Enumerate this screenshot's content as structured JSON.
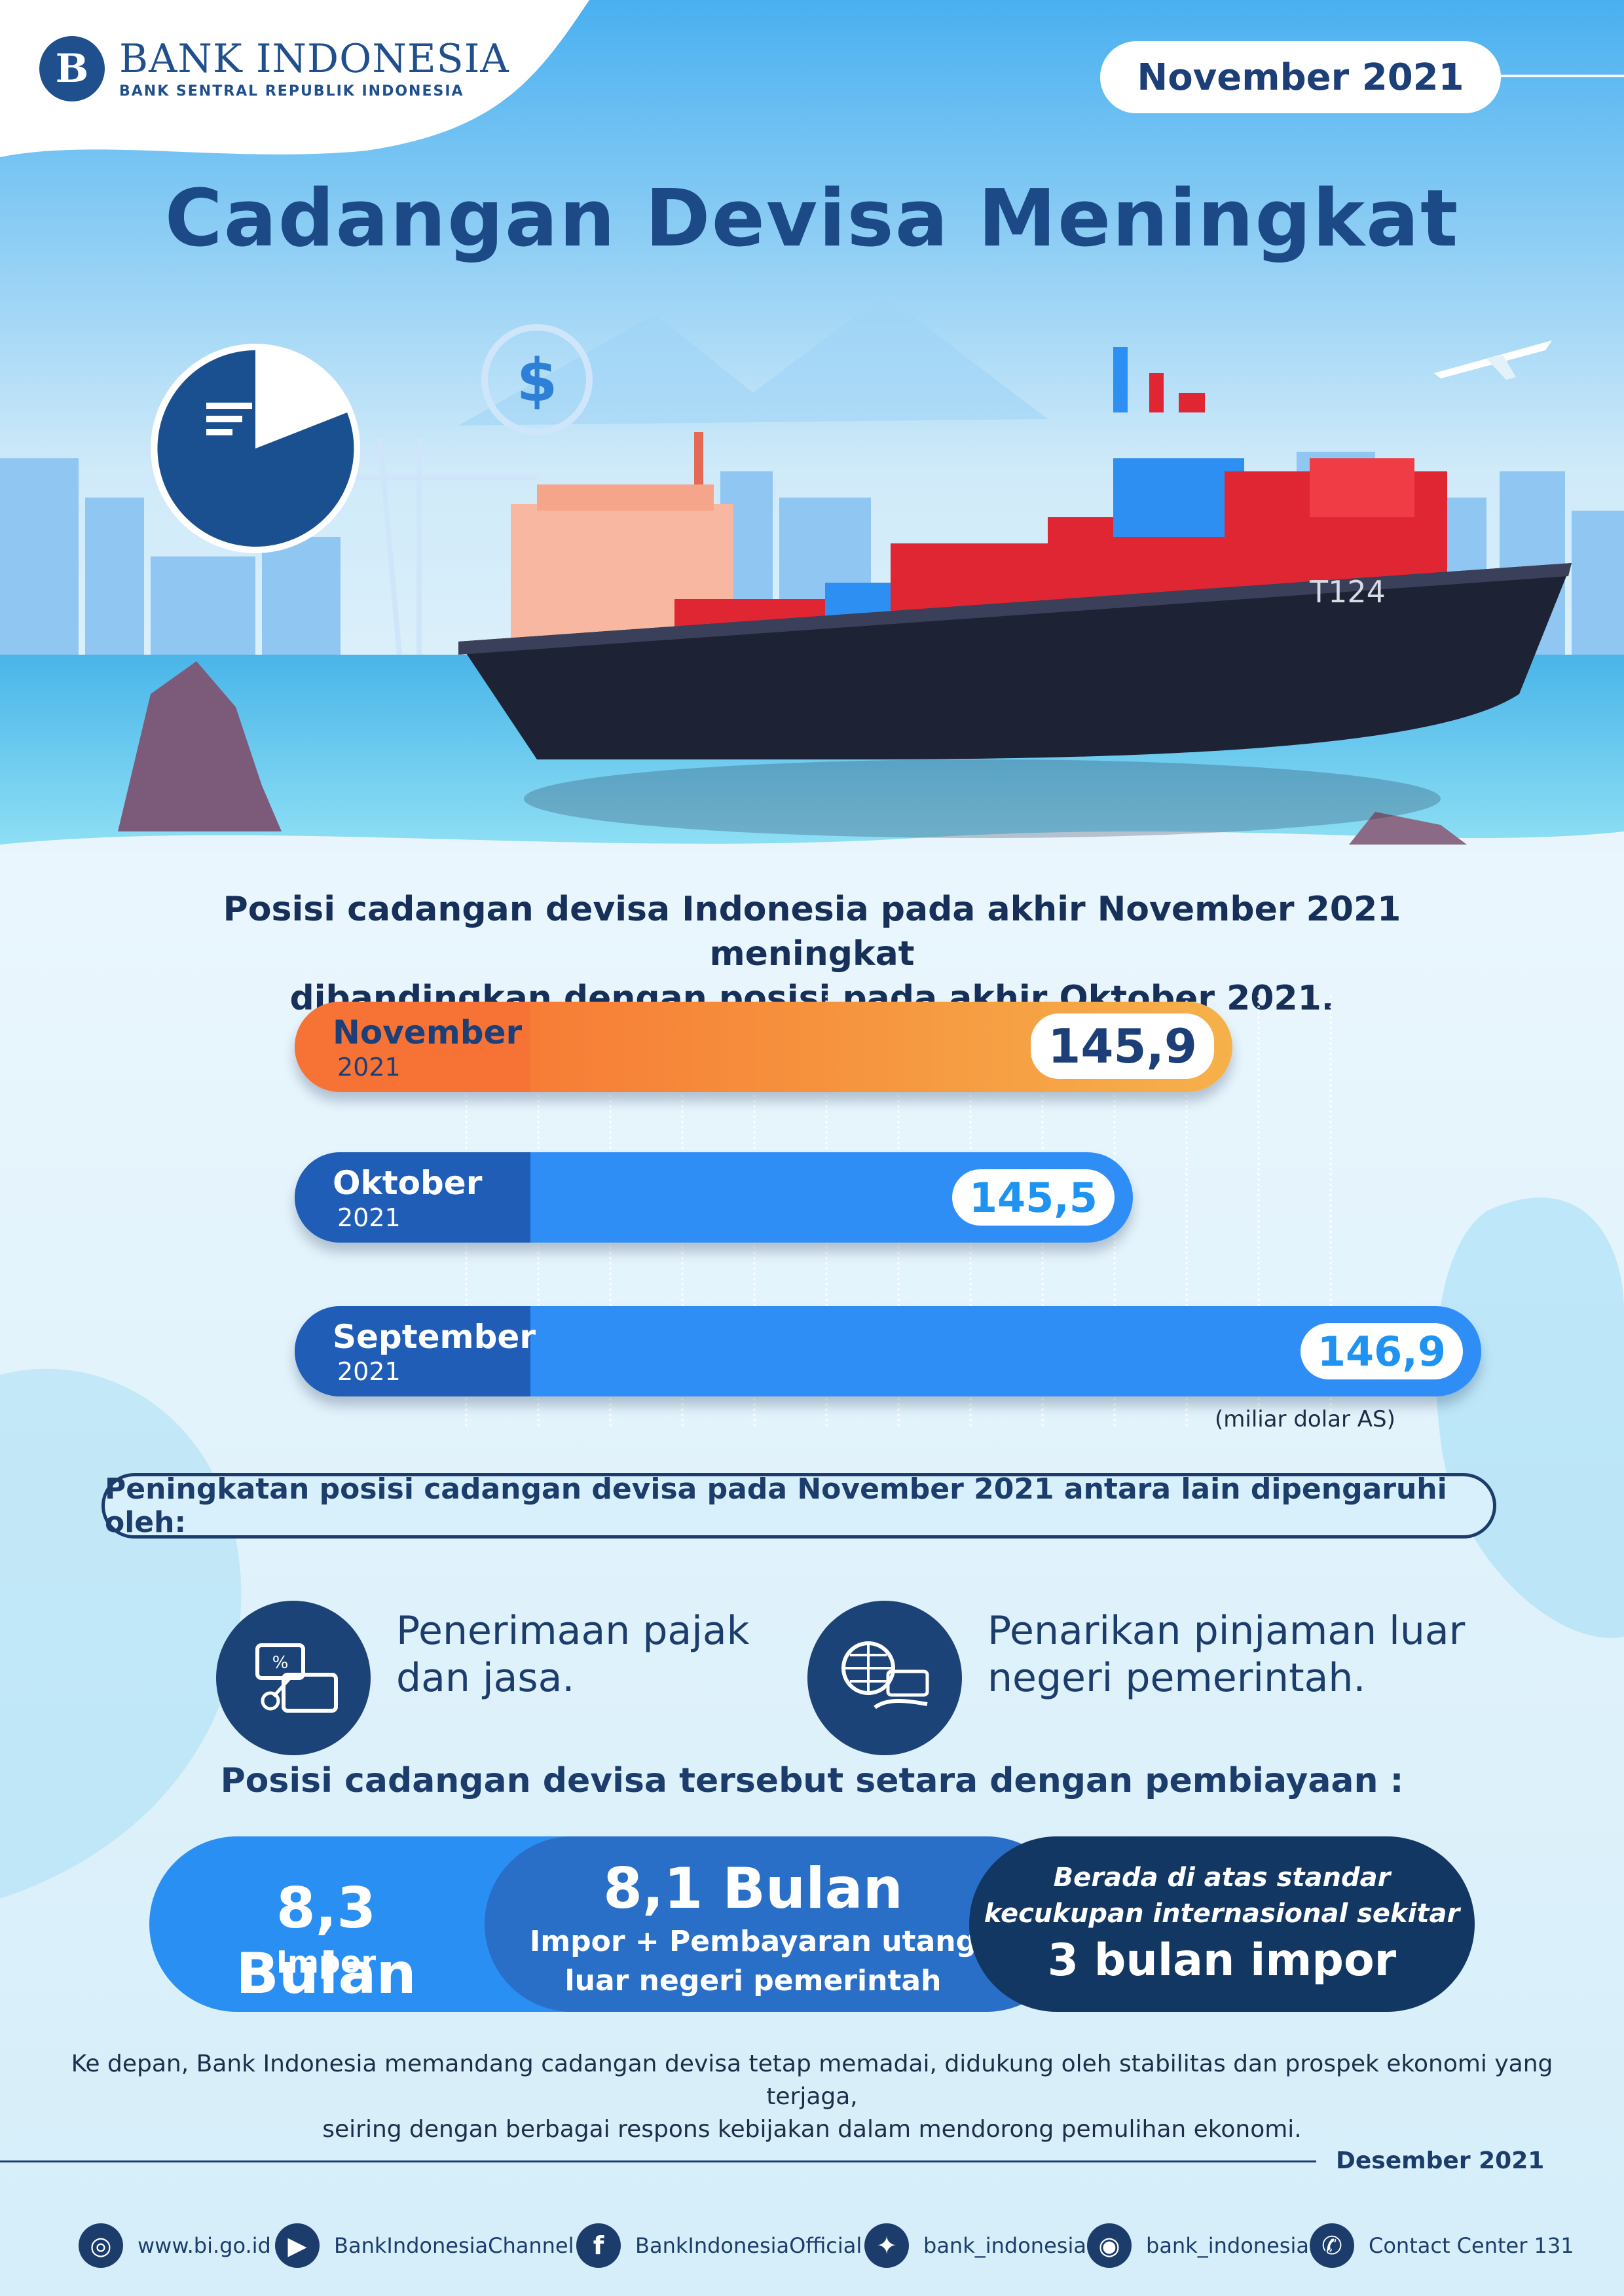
{
  "header": {
    "brand_name": "BANK INDONESIA",
    "brand_sub": "BANK SENTRAL REPUBLIK INDONESIA",
    "period": "November 2021"
  },
  "title": "Cadangan Devisa Meningkat",
  "illustration": {
    "ship_label": "T124",
    "icons": [
      "pie-chart-icon",
      "dollar-icon",
      "bar-chart-icon",
      "airplane-icon",
      "cargo-ship-icon"
    ]
  },
  "intro": {
    "line1": "Posisi cadangan devisa Indonesia pada akhir November 2021 meningkat",
    "line2": "dibandingkan dengan posisi pada akhir Oktober 2021."
  },
  "chart_data": {
    "type": "bar",
    "orientation": "horizontal",
    "categories": [
      "November 2021",
      "Oktober 2021",
      "September 2021"
    ],
    "values": [
      145.9,
      145.5,
      146.9
    ],
    "value_labels": [
      "145,9",
      "145,5",
      "146,9"
    ],
    "unit": "(miliar dolar AS)",
    "bars": [
      {
        "month": "November",
        "year": "2021",
        "label": "145,9",
        "value": 145.9,
        "color_start": "#f76b2f",
        "color_end": "#f6b14a",
        "head_color": "#f77335",
        "value_color": "#1c3f78"
      },
      {
        "month": "Oktober",
        "year": "2021",
        "label": "145,5",
        "value": 145.5,
        "color_start": "#2f8ef6",
        "color_end": "#2f8ef6",
        "head_color": "#1f5db7",
        "value_color": "#1f93f2"
      },
      {
        "month": "September",
        "year": "2021",
        "label": "146,9",
        "value": 146.9,
        "color_start": "#2f8ef6",
        "color_end": "#2f8ef6",
        "head_color": "#1f5db7",
        "value_color": "#1f93f2"
      }
    ]
  },
  "factors": {
    "heading": "Peningkatan posisi cadangan devisa pada November 2021 antara lain dipengaruhi oleh:",
    "items": [
      {
        "line1": "Penerimaan pajak",
        "line2": "dan jasa.",
        "icon": "tax-services-icon"
      },
      {
        "line1": "Penarikan pinjaman luar",
        "line2": "negeri pemerintah.",
        "icon": "foreign-loan-icon"
      }
    ]
  },
  "equivalence": {
    "heading": "Posisi cadangan devisa tersebut setara dengan pembiayaan :",
    "pill1": {
      "big": "8,3 Bulan",
      "small": "Impor"
    },
    "pill2": {
      "big": "8,1 Bulan",
      "small1": "Impor + Pembayaran utang",
      "small2": "luar negeri pemerintah"
    },
    "pill3": {
      "small1": "Berada di atas standar",
      "small2": "kecukupan internasional sekitar",
      "big": "3 bulan impor"
    }
  },
  "footnote": {
    "line1": "Ke depan, Bank Indonesia memandang cadangan devisa tetap memadai, didukung oleh stabilitas dan prospek ekonomi yang terjaga,",
    "line2": "seiring dengan berbagai respons kebijakan dalam mendorong pemulihan ekonomi."
  },
  "publication_date": "Desember 2021",
  "social": [
    {
      "icon": "globe-icon",
      "text": "www.bi.go.id"
    },
    {
      "icon": "youtube-icon",
      "text": "BankIndonesiaChannel"
    },
    {
      "icon": "facebook-icon",
      "text": "BankIndonesiaOfficial"
    },
    {
      "icon": "twitter-icon",
      "text": "bank_indonesia"
    },
    {
      "icon": "instagram-icon",
      "text": "bank_indonesia"
    },
    {
      "icon": "phone-icon",
      "text": "Contact Center 131"
    }
  ]
}
